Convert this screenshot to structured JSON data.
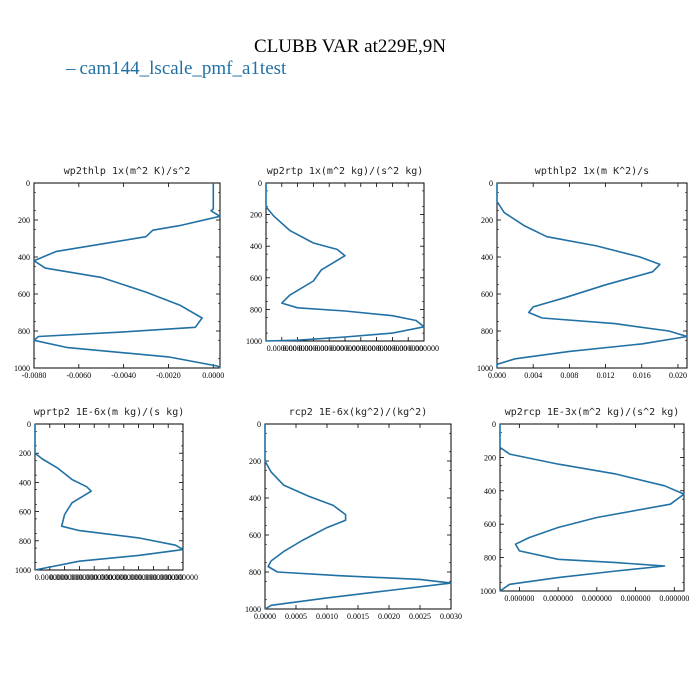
{
  "figure": {
    "title": "CLUBB VAR at229E,9N",
    "legend": [
      {
        "name": "cam144_lscale_pmf_a1test",
        "color": "#2171a5"
      }
    ]
  },
  "chart_data": [
    {
      "type": "line",
      "title": "wp2thlp  1x(m^2 K)/s^2",
      "xlim": [
        -0.008,
        0.0003
      ],
      "ylim": [
        0,
        1000
      ],
      "y_inverted": true,
      "xticks": [
        "-0.0080",
        "-0.0060",
        "-0.0040",
        "-0.0020",
        "0.0000"
      ],
      "xtick_values": [
        -0.008,
        -0.006,
        -0.004,
        -0.002,
        0.0
      ],
      "yticks": [
        "0",
        "200",
        "400",
        "600",
        "800",
        "1000"
      ],
      "ytick_values": [
        0,
        200,
        400,
        600,
        800,
        1000
      ],
      "series": [
        {
          "name": "cam144_lscale_pmf_a1test",
          "color": "#2171a5",
          "points": [
            [
              0.0,
              0
            ],
            [
              0.0,
              140
            ],
            [
              -0.0001,
              150
            ],
            [
              0.0003,
              180
            ],
            [
              -0.0015,
              230
            ],
            [
              -0.0027,
              255
            ],
            [
              -0.003,
              290
            ],
            [
              -0.005,
              330
            ],
            [
              -0.007,
              370
            ],
            [
              -0.008,
              420
            ],
            [
              -0.0075,
              460
            ],
            [
              -0.005,
              510
            ],
            [
              -0.003,
              590
            ],
            [
              -0.0015,
              660
            ],
            [
              -0.0005,
              730
            ],
            [
              -0.0008,
              780
            ],
            [
              -0.004,
              805
            ],
            [
              -0.0078,
              830
            ],
            [
              -0.008,
              850
            ],
            [
              -0.0065,
              890
            ],
            [
              -0.002,
              940
            ],
            [
              0.0002,
              990
            ],
            [
              0.0003,
              1000
            ]
          ]
        }
      ]
    },
    {
      "type": "line",
      "title": "wp2rtp  1x(m^2 kg)/(s^2 kg)",
      "xlim": [
        0,
        1e-06
      ],
      "ylim": [
        0,
        1000
      ],
      "y_inverted": true,
      "xticks": [
        "0.000000",
        "0.000000",
        "0.000000",
        "0.000000",
        "0.000000",
        "0.000000",
        "0.000000",
        "0.000000",
        "0.000000",
        "0.000000"
      ],
      "xtick_values": [
        1e-07,
        2e-07,
        3e-07,
        4e-07,
        5e-07,
        6e-07,
        7e-07,
        8e-07,
        9e-07,
        1e-06
      ],
      "yticks": [
        "0",
        "200",
        "400",
        "600",
        "800",
        "1000"
      ],
      "ytick_values": [
        0,
        200,
        400,
        600,
        800,
        1000
      ],
      "series": [
        {
          "name": "cam144_lscale_pmf_a1test",
          "color": "#2171a5",
          "points": [
            [
              0.0,
              0
            ],
            [
              0.0,
              150
            ],
            [
              5e-08,
              210
            ],
            [
              1.5e-07,
              300
            ],
            [
              3e-07,
              380
            ],
            [
              4.5e-07,
              420
            ],
            [
              5e-07,
              460
            ],
            [
              3.5e-07,
              550
            ],
            [
              3e-07,
              620
            ],
            [
              1.5e-07,
              710
            ],
            [
              1e-07,
              760
            ],
            [
              2e-07,
              790
            ],
            [
              5e-07,
              810
            ],
            [
              8e-07,
              840
            ],
            [
              9.5e-07,
              870
            ],
            [
              1e-06,
              910
            ],
            [
              8e-07,
              950
            ],
            [
              5e-07,
              975
            ],
            [
              2e-07,
              995
            ],
            [
              0.0,
              1000
            ]
          ]
        }
      ]
    },
    {
      "type": "line",
      "title": "wpthlp2  1x(m K^2)/s",
      "xlim": [
        0,
        0.021
      ],
      "ylim": [
        0,
        1000
      ],
      "y_inverted": true,
      "xticks": [
        "0.000",
        "0.004",
        "0.008",
        "0.012",
        "0.016",
        "0.020"
      ],
      "xtick_values": [
        0.0,
        0.004,
        0.008,
        0.012,
        0.016,
        0.02
      ],
      "yticks": [
        "0",
        "200",
        "400",
        "600",
        "800",
        "1000"
      ],
      "ytick_values": [
        0,
        200,
        400,
        600,
        800,
        1000
      ],
      "series": [
        {
          "name": "cam144_lscale_pmf_a1test",
          "color": "#2171a5",
          "points": [
            [
              0.0,
              0
            ],
            [
              0.0,
              100
            ],
            [
              0.0008,
              160
            ],
            [
              0.003,
              230
            ],
            [
              0.0055,
              290
            ],
            [
              0.011,
              340
            ],
            [
              0.0158,
              400
            ],
            [
              0.018,
              440
            ],
            [
              0.0172,
              480
            ],
            [
              0.012,
              550
            ],
            [
              0.0075,
              620
            ],
            [
              0.004,
              670
            ],
            [
              0.0035,
              700
            ],
            [
              0.005,
              730
            ],
            [
              0.013,
              760
            ],
            [
              0.019,
              800
            ],
            [
              0.021,
              830
            ],
            [
              0.016,
              870
            ],
            [
              0.008,
              910
            ],
            [
              0.002,
              950
            ],
            [
              0.0,
              980
            ],
            [
              0.0,
              1000
            ]
          ]
        }
      ]
    },
    {
      "type": "line",
      "title": "wprtp2  1E-6x(m kg)/(s kg)",
      "xlim": [
        0,
        1e-06
      ],
      "ylim": [
        0,
        1000
      ],
      "y_inverted": true,
      "xticks": [
        "0.000000",
        "0.000000",
        "0.000000",
        "0.000000",
        "0.000000",
        "0.000000",
        "0.000000",
        "0.000000",
        "0.000000",
        "0.000000"
      ],
      "xtick_values": [
        1e-07,
        2e-07,
        3e-07,
        4e-07,
        5e-07,
        6e-07,
        7e-07,
        8e-07,
        9e-07,
        1e-06
      ],
      "yticks": [
        "0",
        "200",
        "400",
        "600",
        "800",
        "1000"
      ],
      "ytick_values": [
        0,
        200,
        400,
        600,
        800,
        1000
      ],
      "series": [
        {
          "name": "cam144_lscale_pmf_a1test",
          "color": "#2171a5",
          "points": [
            [
              0.0,
              0
            ],
            [
              0.0,
              200
            ],
            [
              5e-08,
              240
            ],
            [
              1.5e-07,
              300
            ],
            [
              2.5e-07,
              380
            ],
            [
              3.5e-07,
              430
            ],
            [
              3.8e-07,
              460
            ],
            [
              2.5e-07,
              540
            ],
            [
              2e-07,
              620
            ],
            [
              1.8e-07,
              700
            ],
            [
              3e-07,
              730
            ],
            [
              7e-07,
              780
            ],
            [
              9.5e-07,
              830
            ],
            [
              1e-06,
              860
            ],
            [
              7e-07,
              900
            ],
            [
              3e-07,
              940
            ],
            [
              5e-08,
              990
            ],
            [
              0.0,
              1000
            ]
          ]
        }
      ]
    },
    {
      "type": "line",
      "title": "rcp2  1E-6x(kg^2)/(kg^2)",
      "xlim": [
        0,
        0.003
      ],
      "ylim": [
        0,
        1000
      ],
      "y_inverted": true,
      "xticks": [
        "0.0000",
        "0.0005",
        "0.0010",
        "0.0015",
        "0.0020",
        "0.0025",
        "0.0030"
      ],
      "xtick_values": [
        0.0,
        0.0005,
        0.001,
        0.0015,
        0.002,
        0.0025,
        0.003
      ],
      "yticks": [
        "0",
        "200",
        "400",
        "600",
        "800",
        "1000"
      ],
      "ytick_values": [
        0,
        200,
        400,
        600,
        800,
        1000
      ],
      "series": [
        {
          "name": "cam144_lscale_pmf_a1test",
          "color": "#2171a5",
          "points": [
            [
              0.0,
              0
            ],
            [
              0.0,
              200
            ],
            [
              0.0001,
              260
            ],
            [
              0.0003,
              330
            ],
            [
              0.0007,
              390
            ],
            [
              0.0011,
              440
            ],
            [
              0.0013,
              490
            ],
            [
              0.0013,
              520
            ],
            [
              0.001,
              560
            ],
            [
              0.0006,
              630
            ],
            [
              0.0003,
              690
            ],
            [
              0.0001,
              740
            ],
            [
              5e-05,
              770
            ],
            [
              0.0002,
              800
            ],
            [
              0.0012,
              820
            ],
            [
              0.0025,
              840
            ],
            [
              0.003,
              860
            ],
            [
              0.002,
              900
            ],
            [
              0.001,
              940
            ],
            [
              0.0001,
              980
            ],
            [
              0.0,
              1000
            ]
          ]
        }
      ]
    },
    {
      "type": "line",
      "title": "wp2rcp  1E-3x(m^2 kg)/(s^2 kg)",
      "xlim": [
        0,
        9.5e-07
      ],
      "ylim": [
        0,
        1000
      ],
      "y_inverted": true,
      "xticks": [
        "0.000000",
        "0.000000",
        "0.000000",
        "0.000000",
        "0.000000"
      ],
      "xtick_values": [
        1e-07,
        3e-07,
        5e-07,
        7e-07,
        9e-07
      ],
      "yticks": [
        "0",
        "200",
        "400",
        "600",
        "800",
        "1000"
      ],
      "ytick_values": [
        0,
        200,
        400,
        600,
        800,
        1000
      ],
      "series": [
        {
          "name": "cam144_lscale_pmf_a1test",
          "color": "#2171a5",
          "points": [
            [
              0.0,
              0
            ],
            [
              0.0,
              140
            ],
            [
              5e-08,
              180
            ],
            [
              3e-07,
              240
            ],
            [
              6e-07,
              300
            ],
            [
              8.5e-07,
              370
            ],
            [
              9.5e-07,
              420
            ],
            [
              8.8e-07,
              480
            ],
            [
              5e-07,
              560
            ],
            [
              3e-07,
              620
            ],
            [
              1.5e-07,
              680
            ],
            [
              8e-08,
              720
            ],
            [
              1e-07,
              760
            ],
            [
              3e-07,
              810
            ],
            [
              6e-07,
              830
            ],
            [
              8.5e-07,
              850
            ],
            [
              6e-07,
              880
            ],
            [
              3e-07,
              920
            ],
            [
              5e-08,
              960
            ],
            [
              0.0,
              1000
            ]
          ]
        }
      ]
    }
  ]
}
